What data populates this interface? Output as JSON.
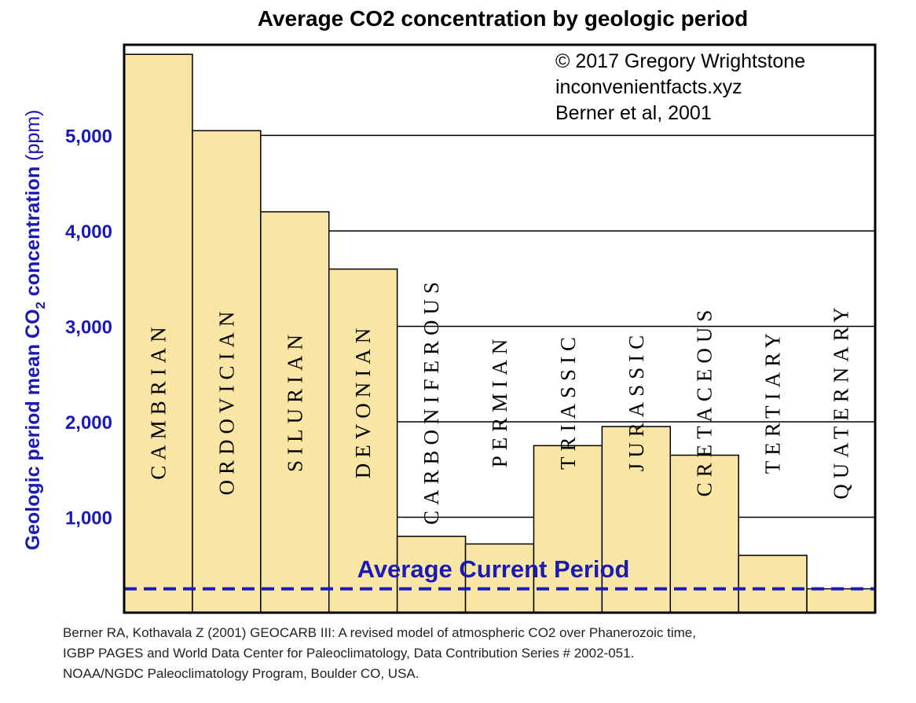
{
  "chart_data": {
    "type": "bar",
    "title": "Average CO2 concentration by geologic period",
    "ylabel": {
      "line1": "Geologic period mean CO",
      "sub": "2",
      "line2": " concentration",
      "unit": " (ppm)"
    },
    "xlabel": "",
    "ylim": [
      0,
      5950
    ],
    "yticks": [
      1000,
      2000,
      3000,
      4000,
      5000
    ],
    "ytick_labels": [
      "1,000",
      "2,000",
      "3,000",
      "4,000",
      "5,000"
    ],
    "grid": "horizontal",
    "categories": [
      "CAMBRIAN",
      "ORDOVICIAN",
      "SILURIAN",
      "DEVONIAN",
      "CARBONIFEROUS",
      "PERMIAN",
      "TRIASSIC",
      "JURASSIC",
      "CRETACEOUS",
      "TERTIARY",
      "QUATERNARY"
    ],
    "values": [
      5850,
      5050,
      4200,
      3600,
      800,
      720,
      1750,
      1950,
      1650,
      600,
      250
    ],
    "reference_line": {
      "label": "Average Current Period",
      "value": 250
    },
    "annotations": [
      "© 2017 Gregory Wrightstone",
      "inconvenientfacts.xyz",
      "Berner et al, 2001"
    ],
    "colors": {
      "bar": "#fae6a4",
      "bar_edge": "#000000",
      "axis_text": "#1a1ab4",
      "reference": "#1a1ab4",
      "grid": "#000000"
    }
  },
  "source_lines": [
    "Berner RA, Kothavala Z (2001) GEOCARB III: A revised model of atmospheric CO2 over Phanerozoic time,",
    "IGBP PAGES and World Data Center for Paleoclimatology, Data Contribution Series # 2002-051.",
    "NOAA/NGDC Paleoclimatology Program, Boulder CO, USA."
  ]
}
